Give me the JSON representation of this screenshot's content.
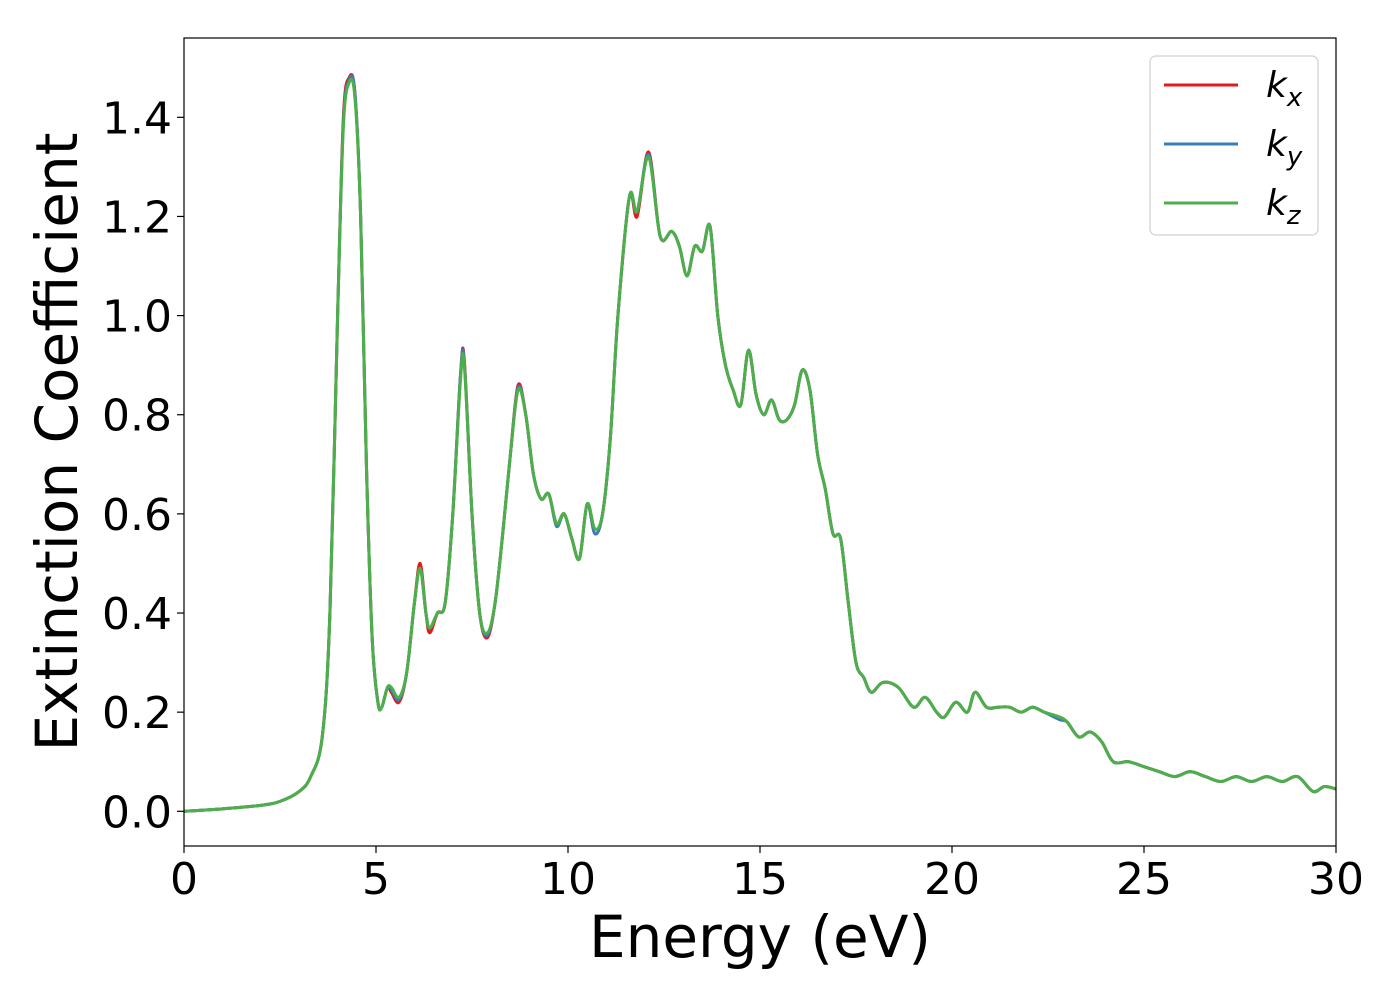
{
  "chart_data": {
    "type": "line",
    "title": "",
    "xlabel": "Energy (eV)",
    "ylabel": "Extinction Coefficient",
    "xlim": [
      0,
      30
    ],
    "ylim": [
      -0.07,
      1.56
    ],
    "xticks": [
      0,
      5,
      10,
      15,
      20,
      25,
      30
    ],
    "xtick_labels": [
      "0",
      "5",
      "10",
      "15",
      "20",
      "25",
      "30"
    ],
    "yticks": [
      0.0,
      0.2,
      0.4,
      0.6,
      0.8,
      1.0,
      1.2,
      1.4
    ],
    "ytick_labels": [
      "0.0",
      "0.2",
      "0.4",
      "0.6",
      "0.8",
      "1.0",
      "1.2",
      "1.4"
    ],
    "grid": false,
    "legend_position": "top-right",
    "series": [
      {
        "name": "k_x",
        "label_base": "k",
        "label_sub": "x",
        "color": "#e41a1c",
        "x": [
          0,
          1,
          2,
          2.5,
          3,
          3.3,
          3.6,
          3.8,
          4.0,
          4.15,
          4.3,
          4.45,
          4.6,
          4.75,
          4.9,
          5.05,
          5.15,
          5.3,
          5.4,
          5.6,
          5.8,
          6.0,
          6.15,
          6.3,
          6.4,
          6.6,
          6.8,
          7.0,
          7.2,
          7.3,
          7.5,
          7.7,
          7.9,
          8.1,
          8.3,
          8.5,
          8.7,
          8.9,
          9.1,
          9.3,
          9.5,
          9.7,
          9.9,
          10.1,
          10.3,
          10.5,
          10.7,
          10.9,
          11.1,
          11.3,
          11.6,
          11.8,
          12.1,
          12.4,
          12.7,
          12.9,
          13.1,
          13.3,
          13.5,
          13.7,
          13.9,
          14.1,
          14.3,
          14.5,
          14.7,
          14.9,
          15.1,
          15.3,
          15.5,
          15.7,
          15.9,
          16.1,
          16.3,
          16.5,
          16.7,
          16.9,
          17.1,
          17.3,
          17.5,
          17.7,
          17.9,
          18.2,
          18.6,
          19.0,
          19.3,
          19.6,
          19.8,
          20.1,
          20.4,
          20.6,
          20.9,
          21.2,
          21.5,
          21.8,
          22.1,
          22.4,
          22.8,
          23.0,
          23.3,
          23.6,
          23.9,
          24.2,
          24.6,
          25.0,
          25.4,
          25.8,
          26.2,
          26.6,
          27.0,
          27.4,
          27.8,
          28.2,
          28.6,
          29.0,
          29.4,
          29.7,
          30.0
        ],
        "y": [
          0.0,
          0.005,
          0.012,
          0.02,
          0.04,
          0.07,
          0.15,
          0.4,
          1.0,
          1.4,
          1.48,
          1.45,
          1.2,
          0.7,
          0.35,
          0.22,
          0.21,
          0.25,
          0.24,
          0.22,
          0.28,
          0.42,
          0.5,
          0.4,
          0.36,
          0.4,
          0.42,
          0.6,
          0.88,
          0.91,
          0.6,
          0.4,
          0.35,
          0.42,
          0.56,
          0.72,
          0.86,
          0.8,
          0.68,
          0.63,
          0.64,
          0.58,
          0.6,
          0.55,
          0.51,
          0.62,
          0.56,
          0.6,
          0.75,
          1.0,
          1.24,
          1.2,
          1.33,
          1.16,
          1.17,
          1.14,
          1.08,
          1.14,
          1.13,
          1.18,
          1.0,
          0.9,
          0.85,
          0.82,
          0.93,
          0.84,
          0.8,
          0.83,
          0.79,
          0.79,
          0.82,
          0.89,
          0.85,
          0.72,
          0.65,
          0.56,
          0.55,
          0.42,
          0.3,
          0.27,
          0.24,
          0.26,
          0.25,
          0.21,
          0.23,
          0.2,
          0.19,
          0.22,
          0.2,
          0.24,
          0.21,
          0.21,
          0.21,
          0.2,
          0.21,
          0.2,
          0.19,
          0.18,
          0.15,
          0.16,
          0.14,
          0.1,
          0.1,
          0.09,
          0.08,
          0.07,
          0.08,
          0.07,
          0.06,
          0.07,
          0.06,
          0.07,
          0.06,
          0.07,
          0.04,
          0.05,
          0.045
        ]
      },
      {
        "name": "k_y",
        "label_base": "k",
        "label_sub": "y",
        "color": "#377eb8",
        "x": [
          0,
          1,
          2,
          2.5,
          3,
          3.3,
          3.6,
          3.8,
          4.0,
          4.15,
          4.3,
          4.45,
          4.6,
          4.75,
          4.9,
          5.05,
          5.15,
          5.3,
          5.4,
          5.6,
          5.8,
          6.0,
          6.15,
          6.3,
          6.4,
          6.6,
          6.8,
          7.0,
          7.2,
          7.3,
          7.5,
          7.7,
          7.9,
          8.1,
          8.3,
          8.5,
          8.7,
          8.9,
          9.1,
          9.3,
          9.5,
          9.7,
          9.9,
          10.1,
          10.3,
          10.5,
          10.7,
          10.9,
          11.1,
          11.3,
          11.6,
          11.8,
          12.1,
          12.4,
          12.7,
          12.9,
          13.1,
          13.3,
          13.5,
          13.7,
          13.9,
          14.1,
          14.3,
          14.5,
          14.7,
          14.9,
          15.1,
          15.3,
          15.5,
          15.7,
          15.9,
          16.1,
          16.3,
          16.5,
          16.7,
          16.9,
          17.1,
          17.3,
          17.5,
          17.7,
          17.9,
          18.2,
          18.6,
          19.0,
          19.3,
          19.6,
          19.8,
          20.1,
          20.4,
          20.6,
          20.9,
          21.2,
          21.5,
          21.8,
          22.1,
          22.4,
          22.8,
          23.0,
          23.3,
          23.6,
          23.9,
          24.2,
          24.6,
          25.0,
          25.4,
          25.8,
          26.2,
          26.6,
          27.0,
          27.4,
          27.8,
          28.2,
          28.6,
          29.0,
          29.4,
          29.7,
          30.0
        ],
        "y": [
          0.0,
          0.005,
          0.012,
          0.02,
          0.04,
          0.07,
          0.15,
          0.4,
          1.0,
          1.39,
          1.475,
          1.45,
          1.2,
          0.7,
          0.35,
          0.22,
          0.21,
          0.25,
          0.245,
          0.225,
          0.28,
          0.42,
          0.49,
          0.4,
          0.37,
          0.4,
          0.42,
          0.6,
          0.88,
          0.905,
          0.6,
          0.4,
          0.355,
          0.42,
          0.56,
          0.72,
          0.855,
          0.8,
          0.68,
          0.63,
          0.64,
          0.575,
          0.6,
          0.55,
          0.51,
          0.62,
          0.56,
          0.6,
          0.75,
          1.0,
          1.24,
          1.21,
          1.325,
          1.16,
          1.17,
          1.14,
          1.08,
          1.14,
          1.13,
          1.18,
          1.0,
          0.9,
          0.85,
          0.82,
          0.93,
          0.84,
          0.8,
          0.83,
          0.79,
          0.79,
          0.82,
          0.89,
          0.85,
          0.72,
          0.65,
          0.56,
          0.55,
          0.42,
          0.3,
          0.27,
          0.24,
          0.26,
          0.25,
          0.21,
          0.23,
          0.2,
          0.19,
          0.22,
          0.2,
          0.24,
          0.21,
          0.21,
          0.21,
          0.2,
          0.21,
          0.2,
          0.185,
          0.18,
          0.15,
          0.16,
          0.14,
          0.1,
          0.1,
          0.09,
          0.08,
          0.07,
          0.08,
          0.07,
          0.06,
          0.07,
          0.06,
          0.07,
          0.06,
          0.07,
          0.04,
          0.05,
          0.045
        ]
      },
      {
        "name": "k_z",
        "label_base": "k",
        "label_sub": "z",
        "color": "#4daf4a",
        "x": [
          0,
          1,
          2,
          2.5,
          3,
          3.3,
          3.6,
          3.8,
          4.0,
          4.15,
          4.3,
          4.45,
          4.6,
          4.75,
          4.9,
          5.05,
          5.15,
          5.3,
          5.4,
          5.6,
          5.8,
          6.0,
          6.15,
          6.3,
          6.4,
          6.6,
          6.8,
          7.0,
          7.2,
          7.3,
          7.5,
          7.7,
          7.9,
          8.1,
          8.3,
          8.5,
          8.7,
          8.9,
          9.1,
          9.3,
          9.5,
          9.7,
          9.9,
          10.1,
          10.3,
          10.5,
          10.7,
          10.9,
          11.1,
          11.3,
          11.6,
          11.8,
          12.1,
          12.4,
          12.7,
          12.9,
          13.1,
          13.3,
          13.5,
          13.7,
          13.9,
          14.1,
          14.3,
          14.5,
          14.7,
          14.9,
          15.1,
          15.3,
          15.5,
          15.7,
          15.9,
          16.1,
          16.3,
          16.5,
          16.7,
          16.9,
          17.1,
          17.3,
          17.5,
          17.7,
          17.9,
          18.2,
          18.6,
          19.0,
          19.3,
          19.6,
          19.8,
          20.1,
          20.4,
          20.6,
          20.9,
          21.2,
          21.5,
          21.8,
          22.1,
          22.4,
          22.8,
          23.0,
          23.3,
          23.6,
          23.9,
          24.2,
          24.6,
          25.0,
          25.4,
          25.8,
          26.2,
          26.6,
          27.0,
          27.4,
          27.8,
          28.2,
          28.6,
          29.0,
          29.4,
          29.7,
          30.0
        ],
        "y": [
          0.0,
          0.005,
          0.012,
          0.02,
          0.04,
          0.07,
          0.15,
          0.4,
          1.0,
          1.38,
          1.47,
          1.44,
          1.2,
          0.7,
          0.35,
          0.22,
          0.21,
          0.25,
          0.25,
          0.23,
          0.28,
          0.42,
          0.49,
          0.4,
          0.37,
          0.4,
          0.42,
          0.6,
          0.87,
          0.9,
          0.6,
          0.4,
          0.36,
          0.42,
          0.56,
          0.72,
          0.85,
          0.8,
          0.68,
          0.63,
          0.64,
          0.58,
          0.6,
          0.55,
          0.51,
          0.62,
          0.57,
          0.6,
          0.75,
          1.0,
          1.24,
          1.21,
          1.32,
          1.16,
          1.17,
          1.14,
          1.08,
          1.14,
          1.13,
          1.18,
          1.0,
          0.9,
          0.85,
          0.82,
          0.93,
          0.84,
          0.8,
          0.83,
          0.79,
          0.79,
          0.82,
          0.89,
          0.85,
          0.72,
          0.65,
          0.56,
          0.55,
          0.42,
          0.3,
          0.27,
          0.24,
          0.26,
          0.25,
          0.21,
          0.23,
          0.2,
          0.19,
          0.22,
          0.2,
          0.24,
          0.21,
          0.21,
          0.21,
          0.2,
          0.21,
          0.2,
          0.19,
          0.18,
          0.15,
          0.16,
          0.14,
          0.1,
          0.1,
          0.09,
          0.08,
          0.07,
          0.08,
          0.07,
          0.06,
          0.07,
          0.06,
          0.07,
          0.06,
          0.07,
          0.04,
          0.05,
          0.045
        ]
      }
    ]
  }
}
